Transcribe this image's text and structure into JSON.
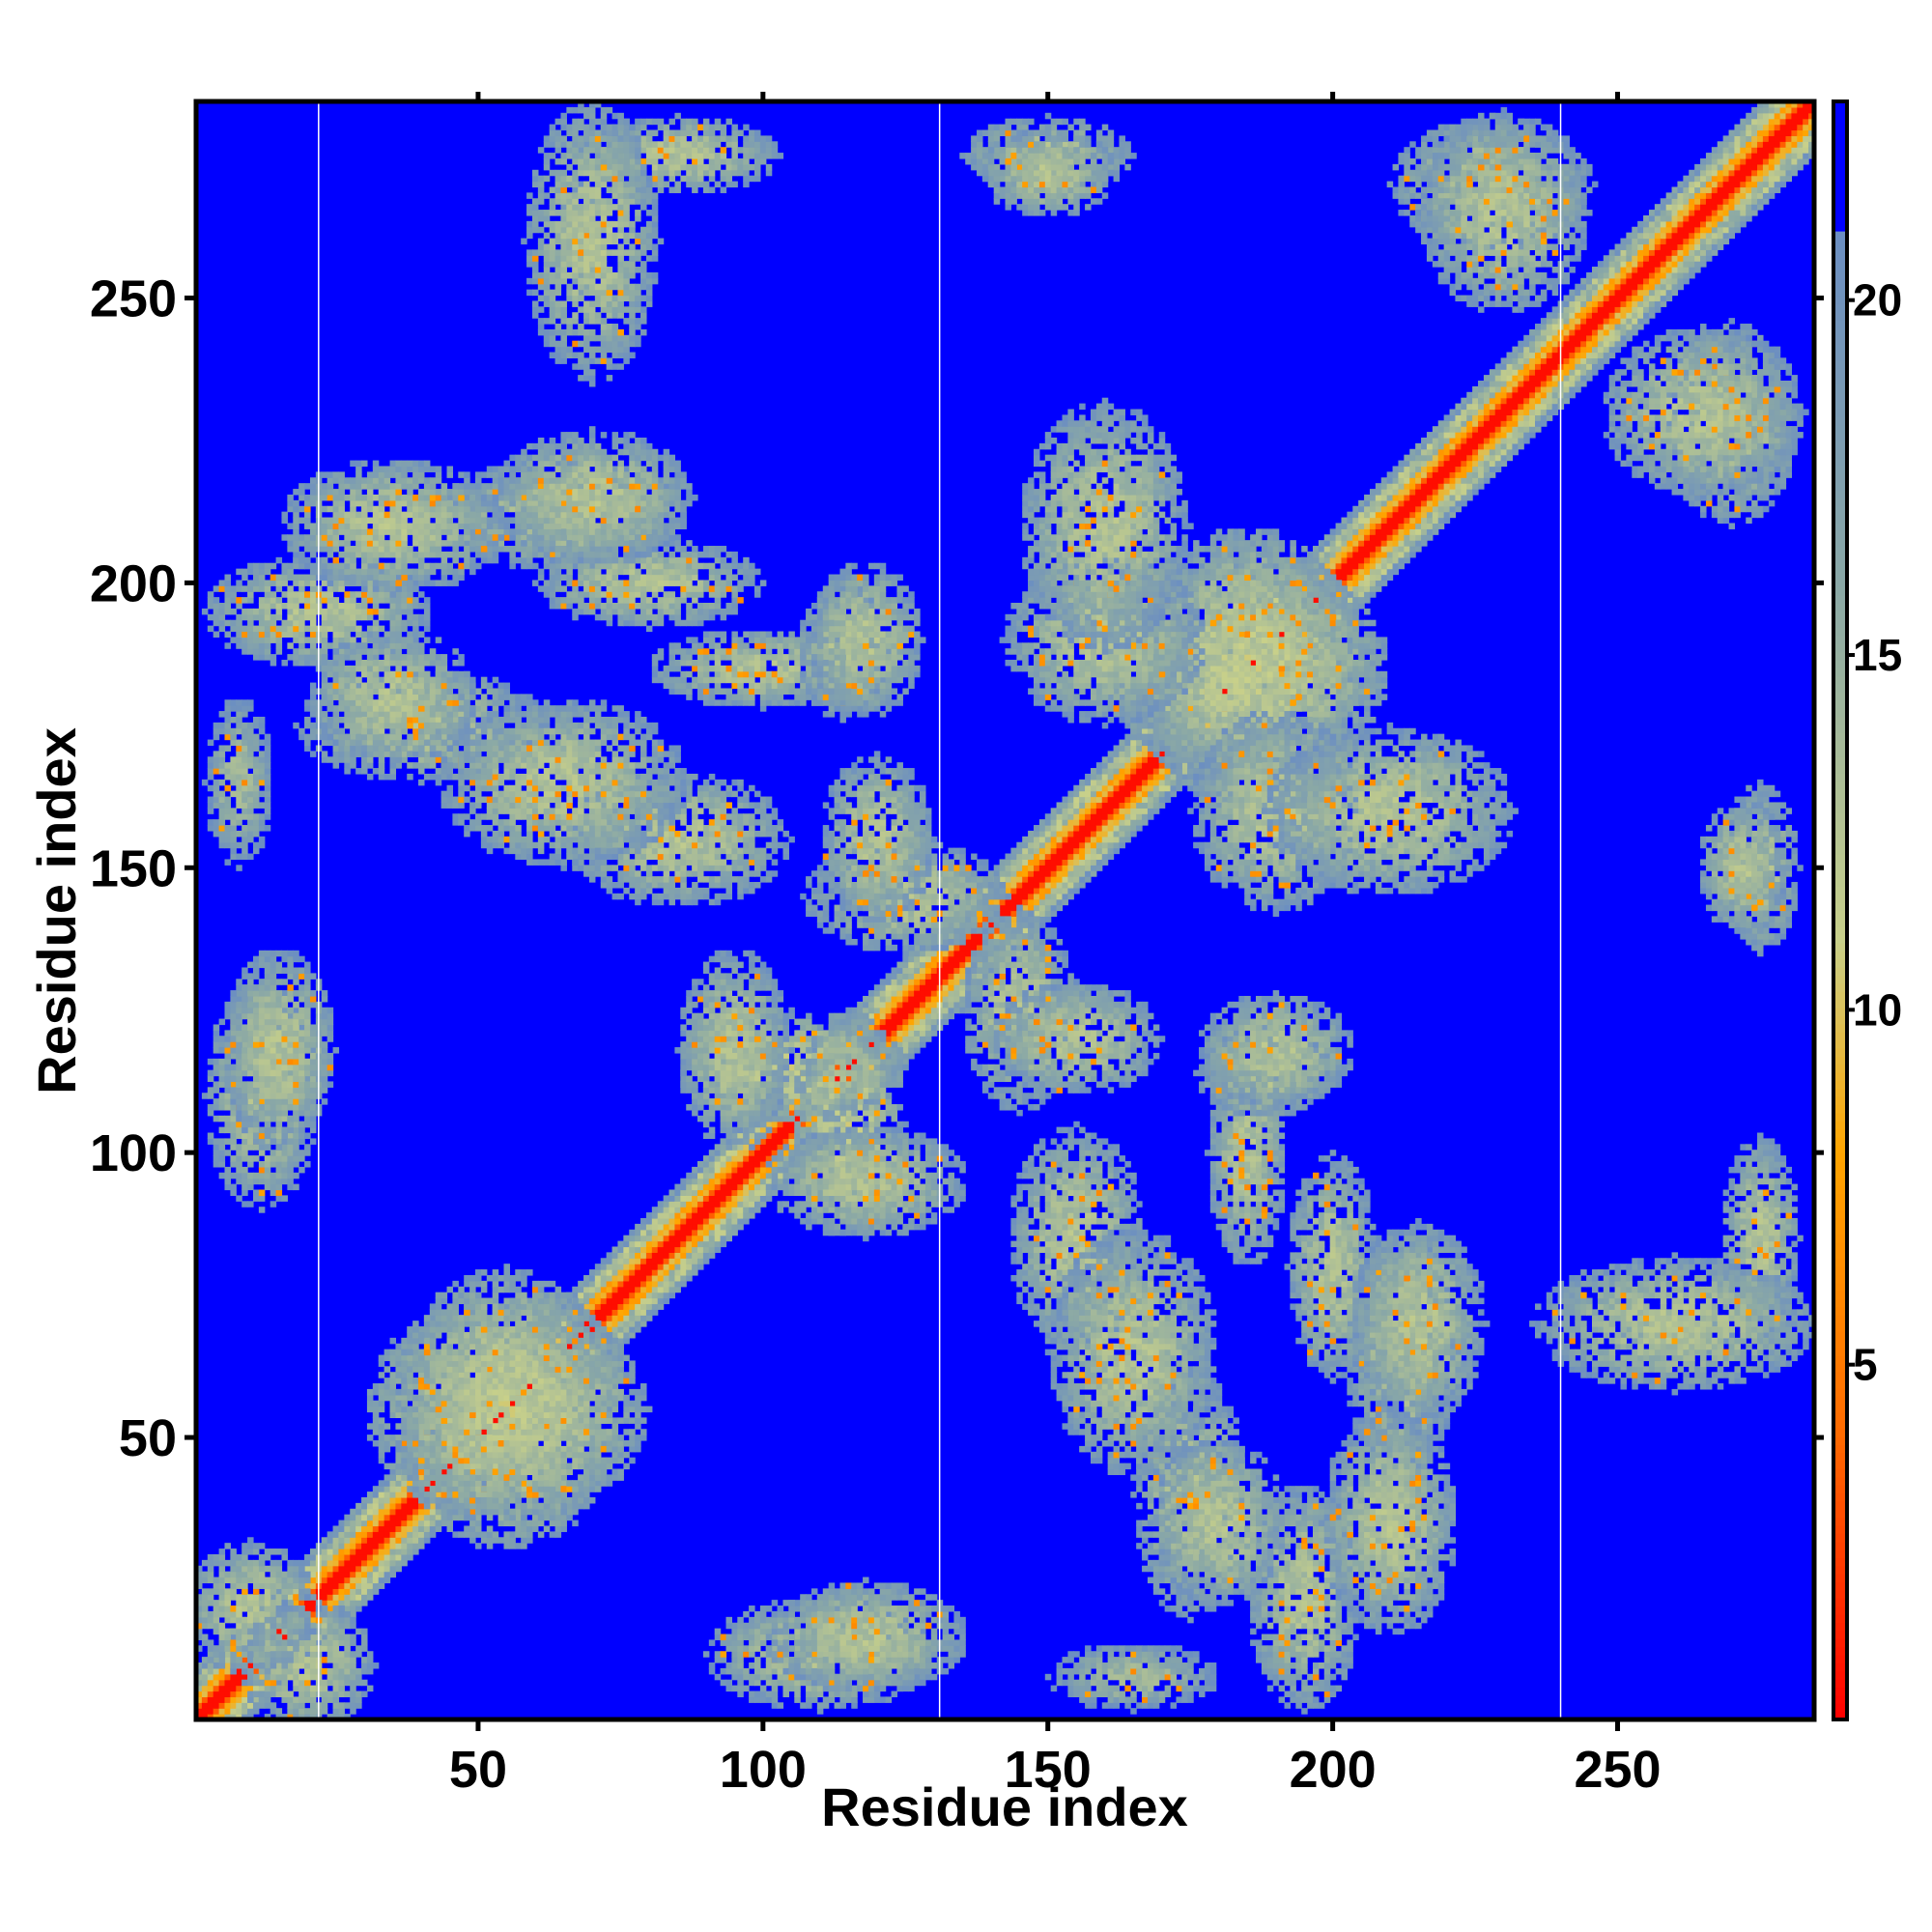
{
  "chart_data": {
    "type": "heatmap",
    "title": "",
    "xlabel": "Residue index",
    "ylabel": "Residue index",
    "n_residues": 284,
    "xlim": [
      1,
      284
    ],
    "ylim": [
      1,
      284
    ],
    "x_ticks": [
      50,
      100,
      150,
      200,
      250
    ],
    "y_ticks": [
      50,
      100,
      150,
      200,
      250
    ],
    "colorbar": {
      "range": [
        0,
        22.8
      ],
      "ticks": [
        5,
        10,
        15,
        20
      ],
      "colorscale": [
        {
          "value": 0,
          "color": "#ff0000"
        },
        {
          "value": 4,
          "color": "#ff6a00"
        },
        {
          "value": 8,
          "color": "#ffa500"
        },
        {
          "value": 11,
          "color": "#c8d08a"
        },
        {
          "value": 16,
          "color": "#8aa8a6"
        },
        {
          "value": 21,
          "color": "#6b8ec2"
        },
        {
          "value": 21.01,
          "color": "#0000ff"
        }
      ]
    },
    "background_color": "#0000ff",
    "missing_residue_lines": [
      22,
      131,
      240
    ],
    "description_note": "Inter-residue distance map; symmetric; low values along diagonal",
    "contact_blobs": [
      {
        "x": 12,
        "y": 110,
        "w": 10,
        "h": 20,
        "v": 13
      },
      {
        "x": 22,
        "y": 195,
        "w": 20,
        "h": 10,
        "v": 13
      },
      {
        "x": 40,
        "y": 175,
        "w": 22,
        "h": 10,
        "v": 13
      },
      {
        "x": 65,
        "y": 212,
        "w": 22,
        "h": 10,
        "v": 13
      },
      {
        "x": 68,
        "y": 260,
        "w": 4,
        "h": 10,
        "v": 13
      },
      {
        "x": 85,
        "y": 275,
        "w": 18,
        "h": 7,
        "v": 13
      },
      {
        "x": 85,
        "y": 155,
        "w": 20,
        "h": 12,
        "v": 13
      },
      {
        "x": 100,
        "y": 185,
        "w": 20,
        "h": 7,
        "v": 13
      },
      {
        "x": 114,
        "y": 188,
        "w": 8,
        "h": 12,
        "v": 13
      },
      {
        "x": 105,
        "y": 115,
        "w": 20,
        "h": 10,
        "v": 12
      },
      {
        "x": 118,
        "y": 95,
        "w": 18,
        "h": 10,
        "v": 13
      },
      {
        "x": 125,
        "y": 145,
        "w": 18,
        "h": 10,
        "v": 13
      },
      {
        "x": 118,
        "y": 15,
        "w": 18,
        "h": 10,
        "v": 13
      },
      {
        "x": 150,
        "y": 275,
        "w": 15,
        "h": 7,
        "v": 13
      },
      {
        "x": 155,
        "y": 120,
        "w": 15,
        "h": 10,
        "v": 13
      },
      {
        "x": 165,
        "y": 65,
        "w": 15,
        "h": 22,
        "v": 13
      },
      {
        "x": 180,
        "y": 35,
        "w": 12,
        "h": 15,
        "v": 13
      },
      {
        "x": 185,
        "y": 185,
        "w": 25,
        "h": 20,
        "v": 12
      },
      {
        "x": 160,
        "y": 190,
        "w": 18,
        "h": 15,
        "v": 13
      },
      {
        "x": 190,
        "y": 118,
        "w": 14,
        "h": 10,
        "v": 13
      },
      {
        "x": 200,
        "y": 80,
        "w": 8,
        "h": 20,
        "v": 13
      },
      {
        "x": 210,
        "y": 160,
        "w": 22,
        "h": 15,
        "v": 13
      },
      {
        "x": 215,
        "y": 70,
        "w": 12,
        "h": 18,
        "v": 13
      },
      {
        "x": 210,
        "y": 35,
        "w": 12,
        "h": 20,
        "v": 13
      },
      {
        "x": 228,
        "y": 270,
        "w": 18,
        "h": 12,
        "v": 13
      },
      {
        "x": 265,
        "y": 230,
        "w": 18,
        "h": 15,
        "v": 13
      },
      {
        "x": 272,
        "y": 150,
        "w": 8,
        "h": 12,
        "v": 13
      },
      {
        "x": 260,
        "y": 70,
        "w": 25,
        "h": 12,
        "v": 13
      },
      {
        "x": 10,
        "y": 20,
        "w": 12,
        "h": 12,
        "v": 13
      },
      {
        "x": 55,
        "y": 55,
        "w": 25,
        "h": 20,
        "v": 12
      },
      {
        "x": 165,
        "y": 8,
        "w": 15,
        "h": 6,
        "v": 14
      }
    ]
  }
}
